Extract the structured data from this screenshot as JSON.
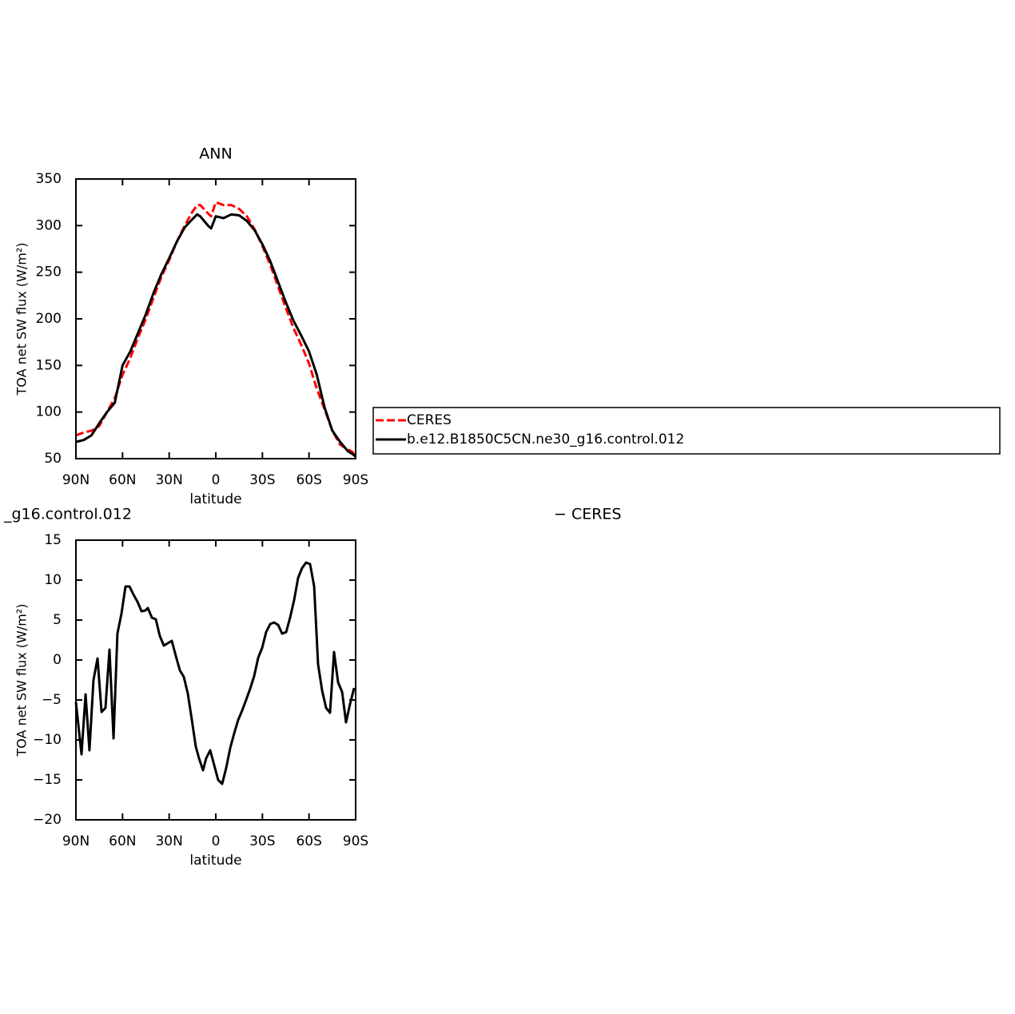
{
  "chart_data": [
    {
      "type": "line",
      "title": "ANN",
      "xlabel": "latitude",
      "ylabel": "TOA net SW flux (W/m²)",
      "xlim": [
        90,
        -90
      ],
      "ylim": [
        50,
        350
      ],
      "xticks": [
        {
          "value": 90,
          "label": "90N"
        },
        {
          "value": 60,
          "label": "60N"
        },
        {
          "value": 30,
          "label": "30N"
        },
        0,
        {
          "value": -30,
          "label": "30S"
        },
        {
          "value": -60,
          "label": "60S"
        },
        {
          "value": -90,
          "label": "90S"
        }
      ],
      "yticks": [
        50,
        100,
        150,
        200,
        250,
        300,
        350
      ],
      "x": [
        90,
        85,
        80,
        75,
        70,
        65,
        60,
        55,
        50,
        45,
        40,
        35,
        30,
        25,
        20,
        15,
        12,
        10,
        5,
        3,
        0,
        -5,
        -10,
        -15,
        -20,
        -25,
        -30,
        -35,
        -40,
        -45,
        -50,
        -55,
        -60,
        -65,
        -70,
        -75,
        -80,
        -85,
        -88,
        -90
      ],
      "series": [
        {
          "name": "CERES",
          "color": "#ff0000",
          "dashed": true,
          "values": [
            75,
            78,
            80,
            85,
            100,
            115,
            140,
            158,
            180,
            200,
            223,
            245,
            263,
            283,
            300,
            315,
            322,
            322,
            313,
            310,
            325,
            322,
            322,
            318,
            310,
            296,
            278,
            258,
            235,
            212,
            190,
            172,
            152,
            125,
            103,
            80,
            65,
            60,
            57,
            52
          ]
        },
        {
          "name": "b.e12.B1850C5CN.ne30_g16.control.012",
          "color": "#000000",
          "dashed": false,
          "values": [
            68,
            70,
            75,
            88,
            100,
            110,
            150,
            165,
            185,
            205,
            228,
            248,
            265,
            283,
            298,
            307,
            312,
            310,
            300,
            297,
            310,
            308,
            312,
            311,
            305,
            295,
            280,
            262,
            240,
            218,
            198,
            182,
            165,
            140,
            105,
            80,
            68,
            58,
            55,
            52
          ]
        }
      ]
    },
    {
      "type": "line",
      "titles": [
        "_g16.control.012",
        "− CERES"
      ],
      "xlabel": "latitude",
      "ylabel": "TOA net SW flux (W/m²)",
      "xlim": [
        90,
        -90
      ],
      "ylim": [
        -20,
        15
      ],
      "xticks": [
        {
          "value": 90,
          "label": "90N"
        },
        {
          "value": 60,
          "label": "60N"
        },
        {
          "value": 30,
          "label": "30N"
        },
        0,
        {
          "value": -30,
          "label": "30S"
        },
        {
          "value": -60,
          "label": "60S"
        },
        {
          "value": -90,
          "label": "90S"
        }
      ],
      "yticks": [
        {
          "value": -20,
          "label": "−20"
        },
        {
          "value": -15,
          "label": "−15"
        },
        {
          "value": -10,
          "label": "−10"
        },
        {
          "value": -5,
          "label": "−5"
        },
        0,
        5,
        10,
        15
      ],
      "x": [
        90,
        86.4,
        83.8,
        81.3,
        78.7,
        76.1,
        73.5,
        71,
        68.4,
        65.8,
        63.3,
        60.7,
        58.1,
        55.5,
        53,
        50.4,
        47.8,
        45.3,
        43.7,
        41.1,
        38.6,
        36,
        33.4,
        30.9,
        28.3,
        25.7,
        23.1,
        20.6,
        18,
        15.4,
        12.9,
        10.8,
        8.2,
        6.2,
        3.6,
        1.1,
        -1.5,
        -4.1,
        -6.7,
        -9.3,
        -11.8,
        -14.4,
        -17,
        -19.5,
        -22.1,
        -24.7,
        -27.3,
        -29.8,
        -32.4,
        -35,
        -37.5,
        -40.1,
        -42.7,
        -45.3,
        -47.8,
        -50.4,
        -53,
        -55.5,
        -58.1,
        -60.7,
        -63.3,
        -65.8,
        -68.4,
        -71,
        -73.5,
        -76.1,
        -78.7,
        -81.3,
        -83.8,
        -86.4,
        -89
      ],
      "series": [
        {
          "color": "#000000",
          "dashed": false,
          "values": [
            -5.3,
            -11.8,
            -4.3,
            -11.3,
            -2.5,
            0.2,
            -6.5,
            -6,
            1.3,
            -9.8,
            3.3,
            5.8,
            9.2,
            9.2,
            8.2,
            7.3,
            6.1,
            6.2,
            6.5,
            5.3,
            5.1,
            3,
            1.8,
            2.1,
            2.4,
            0.5,
            -1.3,
            -2.1,
            -4.2,
            -7.5,
            -10.8,
            -12.3,
            -13.8,
            -12.3,
            -11.3,
            -13.1,
            -15,
            -15.5,
            -13.5,
            -11,
            -9.2,
            -7.5,
            -6.3,
            -5,
            -3.6,
            -2,
            0.3,
            1.5,
            3.5,
            4.5,
            4.7,
            4.4,
            3.3,
            3.5,
            5.3,
            7.5,
            10.3,
            11.5,
            12.2,
            12,
            9.2,
            -0.5,
            -3.8,
            -6,
            -6.6,
            1,
            -2.8,
            -4,
            -7.8,
            -5.5,
            -3.5
          ]
        }
      ]
    }
  ]
}
